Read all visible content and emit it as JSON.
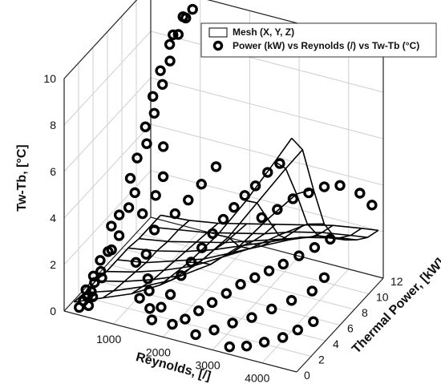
{
  "chart_data": {
    "type": "surface3d",
    "title": "",
    "xlabel": "Reynolds, [/]",
    "ylabel": "Thermal Power, [kW]",
    "zlabel": "Tw-Tb, [°C]",
    "xlim": [
      0,
      4700
    ],
    "ylim": [
      0,
      12
    ],
    "zlim": [
      0,
      10
    ],
    "x_ticks": [
      1000,
      2000,
      3000,
      4000
    ],
    "y_ticks": [
      0,
      2,
      4,
      6,
      8,
      10,
      12
    ],
    "z_ticks": [
      0,
      2,
      4,
      6,
      8,
      10
    ],
    "grid": true,
    "legend_position": "top-right",
    "legend": [
      {
        "label": "Mesh (X, Y, Z)",
        "kind": "mesh"
      },
      {
        "label": "Power (kW) vs Reynolds (/) vs Tw-Tb (°C)",
        "kind": "marker"
      }
    ],
    "mesh": {
      "x": [
        200,
        780,
        1360,
        1940,
        2520,
        3100,
        3680,
        4260,
        4600
      ],
      "y": [
        0,
        1.5,
        3,
        4.5,
        6,
        7.5,
        9,
        10.5,
        12
      ],
      "z": [
        [
          0.5,
          1.0,
          1.5,
          2.2,
          3.5,
          5.0,
          6.8,
          8.8,
          10.0
        ],
        [
          0.4,
          0.8,
          1.3,
          1.9,
          3.0,
          4.4,
          6.2,
          8.0,
          9.0
        ],
        [
          0.4,
          0.7,
          1.1,
          1.6,
          2.4,
          3.5,
          5.0,
          6.4,
          6.8
        ],
        [
          0.3,
          0.6,
          1.0,
          1.5,
          2.2,
          2.9,
          3.8,
          4.6,
          4.8
        ],
        [
          0.3,
          0.5,
          0.9,
          1.3,
          1.9,
          2.5,
          3.1,
          3.6,
          3.7
        ],
        [
          0.3,
          0.5,
          0.8,
          1.2,
          1.7,
          2.2,
          2.7,
          3.0,
          3.1
        ],
        [
          0.2,
          0.4,
          0.7,
          1.0,
          1.4,
          1.8,
          2.2,
          2.5,
          2.6
        ],
        [
          0.2,
          0.4,
          0.6,
          0.9,
          1.2,
          1.6,
          1.9,
          2.1,
          2.2
        ],
        [
          0.2,
          0.3,
          0.5,
          0.8,
          1.1,
          1.4,
          1.7,
          1.9,
          2.0
        ]
      ]
    },
    "points": [
      [
        260,
        0.3,
        0.2
      ],
      [
        300,
        0.6,
        0.4
      ],
      [
        340,
        0.9,
        0.5
      ],
      [
        280,
        1.1,
        0.7
      ],
      [
        360,
        1.3,
        0.6
      ],
      [
        420,
        0.5,
        0.3
      ],
      [
        460,
        0.8,
        0.6
      ],
      [
        380,
        1.6,
        0.9
      ],
      [
        300,
        2.0,
        1.0
      ],
      [
        420,
        2.2,
        1.2
      ],
      [
        500,
        1.8,
        1.1
      ],
      [
        350,
        2.6,
        1.5
      ],
      [
        450,
        3.0,
        1.8
      ],
      [
        550,
        2.8,
        2.0
      ],
      [
        600,
        3.5,
        2.4
      ],
      [
        400,
        3.8,
        2.6
      ],
      [
        500,
        4.2,
        3.0
      ],
      [
        650,
        4.5,
        3.3
      ],
      [
        700,
        5.0,
        3.8
      ],
      [
        550,
        5.4,
        4.2
      ],
      [
        600,
        6.0,
        4.9
      ],
      [
        750,
        6.3,
        5.5
      ],
      [
        650,
        6.8,
        6.0
      ],
      [
        800,
        7.0,
        6.6
      ],
      [
        700,
        7.5,
        7.1
      ],
      [
        850,
        7.8,
        7.6
      ],
      [
        750,
        8.2,
        8.0
      ],
      [
        900,
        8.5,
        8.4
      ],
      [
        820,
        9.0,
        8.9
      ],
      [
        950,
        9.3,
        9.3
      ],
      [
        1000,
        10.0,
        9.8
      ],
      [
        1050,
        10.6,
        10.0
      ],
      [
        900,
        10.3,
        9.7
      ],
      [
        800,
        9.6,
        9.1
      ],
      [
        1100,
        6.2,
        5.6
      ],
      [
        1200,
        5.5,
        4.6
      ],
      [
        1150,
        4.8,
        4.0
      ],
      [
        1000,
        4.0,
        3.4
      ],
      [
        1300,
        3.6,
        3.0
      ],
      [
        1250,
        2.8,
        2.2
      ],
      [
        1100,
        2.4,
        1.9
      ],
      [
        1400,
        2.0,
        1.5
      ],
      [
        1500,
        1.5,
        1.2
      ],
      [
        1350,
        1.2,
        0.9
      ],
      [
        1600,
        0.9,
        0.7
      ],
      [
        1700,
        0.5,
        0.4
      ],
      [
        1800,
        1.1,
        0.8
      ],
      [
        1900,
        1.7,
        1.2
      ],
      [
        2000,
        2.5,
        1.8
      ],
      [
        2100,
        3.2,
        2.2
      ],
      [
        2200,
        4.0,
        2.6
      ],
      [
        2300,
        4.8,
        3.0
      ],
      [
        2400,
        5.6,
        3.4
      ],
      [
        2500,
        6.4,
        3.7
      ],
      [
        2600,
        7.2,
        4.0
      ],
      [
        2700,
        8.0,
        4.2
      ],
      [
        2800,
        9.0,
        4.5
      ],
      [
        2900,
        10.0,
        4.6
      ],
      [
        2100,
        0.6,
        0.4
      ],
      [
        2300,
        1.0,
        0.6
      ],
      [
        2500,
        1.5,
        0.9
      ],
      [
        2700,
        2.0,
        1.2
      ],
      [
        2900,
        2.6,
        1.5
      ],
      [
        3100,
        3.2,
        1.8
      ],
      [
        3300,
        3.8,
        2.0
      ],
      [
        3500,
        4.4,
        2.2
      ],
      [
        3700,
        5.0,
        2.4
      ],
      [
        3900,
        5.8,
        2.6
      ],
      [
        4100,
        6.6,
        2.8
      ],
      [
        4300,
        7.4,
        3.0
      ],
      [
        2600,
        0.4,
        0.3
      ],
      [
        2900,
        0.9,
        0.5
      ],
      [
        3200,
        1.4,
        0.8
      ],
      [
        3500,
        2.0,
        1.0
      ],
      [
        3800,
        2.7,
        1.3
      ],
      [
        4100,
        3.4,
        1.6
      ],
      [
        4400,
        4.2,
        1.9
      ],
      [
        4500,
        5.2,
        2.2
      ],
      [
        3000,
        6.8,
        3.4
      ],
      [
        3200,
        7.6,
        3.6
      ],
      [
        3400,
        8.4,
        3.9
      ],
      [
        3600,
        9.2,
        4.0
      ],
      [
        3800,
        10.0,
        4.1
      ],
      [
        4000,
        10.8,
        4.0
      ],
      [
        4300,
        11.5,
        3.6
      ],
      [
        4500,
        11.8,
        3.1
      ],
      [
        1600,
        4.4,
        3.6
      ],
      [
        1750,
        5.2,
        4.0
      ],
      [
        1900,
        6.0,
        4.5
      ],
      [
        2050,
        7.0,
        5.0
      ],
      [
        3300,
        0.3,
        0.2
      ],
      [
        3600,
        0.6,
        0.3
      ],
      [
        3900,
        1.0,
        0.5
      ],
      [
        4200,
        1.5,
        0.7
      ],
      [
        4400,
        2.2,
        0.9
      ],
      [
        4600,
        3.0,
        1.1
      ]
    ]
  }
}
